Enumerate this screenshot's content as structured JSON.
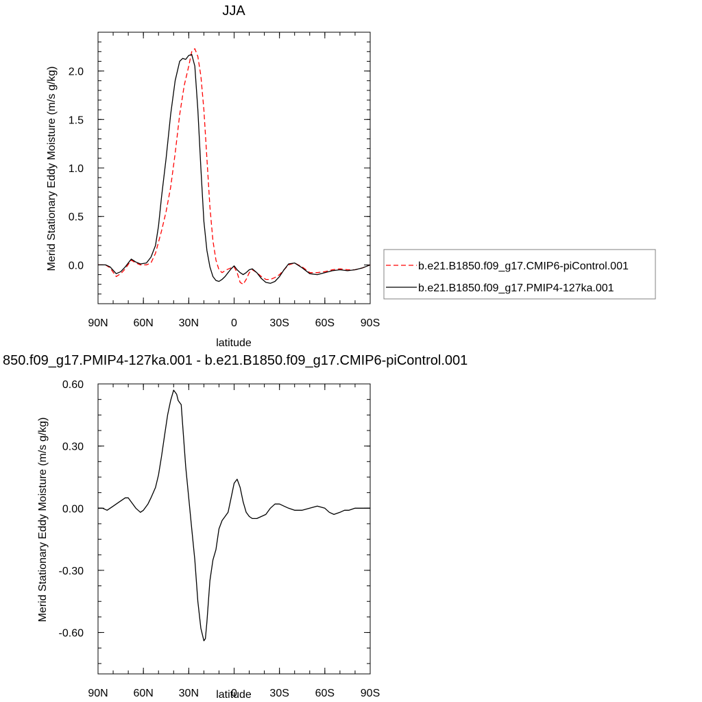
{
  "chart_data": [
    {
      "type": "line",
      "title": "JJA",
      "xlabel": "latitude",
      "ylabel": "Merid Stationary Eddy Moisture (m/s g/kg)",
      "xlim": [
        90,
        -90
      ],
      "ylim": [
        -0.4,
        2.4
      ],
      "xticks": [
        90,
        60,
        30,
        0,
        -30,
        -60,
        -90
      ],
      "xtick_labels": [
        "90N",
        "60N",
        "30N",
        "0",
        "30S",
        "60S",
        "90S"
      ],
      "yticks": [
        0.0,
        0.5,
        1.0,
        1.5,
        2.0
      ],
      "ytick_labels": [
        "0.0",
        "0.5",
        "1.0",
        "1.5",
        "2.0"
      ],
      "legend": "right",
      "series": [
        {
          "name": "b.e21.B1850.f09_g17.CMIP6-piControl.001",
          "color": "#ff0000",
          "dash": "dashed",
          "x": [
            90,
            85,
            82,
            78,
            75,
            72,
            68,
            65,
            62,
            58,
            55,
            52,
            48,
            45,
            42,
            39,
            36,
            33,
            30,
            28,
            26,
            24,
            22,
            20,
            18,
            16,
            14,
            12,
            10,
            8,
            5,
            2,
            0,
            -2,
            -4,
            -6,
            -8,
            -10,
            -12,
            -15,
            -18,
            -21,
            -24,
            -27,
            -30,
            -33,
            -36,
            -40,
            -45,
            -50,
            -55,
            -60,
            -65,
            -70,
            -75,
            -80,
            -85,
            -90
          ],
          "y": [
            0.0,
            0.0,
            -0.03,
            -0.12,
            -0.09,
            -0.04,
            0.05,
            0.02,
            0.0,
            0.0,
            0.02,
            0.12,
            0.35,
            0.55,
            0.8,
            1.15,
            1.55,
            1.85,
            2.05,
            2.2,
            2.23,
            2.15,
            1.95,
            1.6,
            1.1,
            0.6,
            0.25,
            0.05,
            -0.05,
            -0.08,
            -0.05,
            -0.03,
            -0.02,
            -0.08,
            -0.18,
            -0.2,
            -0.15,
            -0.08,
            -0.05,
            -0.08,
            -0.12,
            -0.15,
            -0.15,
            -0.13,
            -0.1,
            -0.05,
            0.0,
            0.02,
            -0.02,
            -0.08,
            -0.08,
            -0.07,
            -0.05,
            -0.04,
            -0.05,
            -0.05,
            -0.03,
            0.0
          ]
        },
        {
          "name": "b.e21.B1850.f09_g17.PMIP4-127ka.001",
          "color": "#000000",
          "dash": "solid",
          "x": [
            90,
            85,
            82,
            78,
            75,
            72,
            68,
            65,
            62,
            58,
            55,
            52,
            50,
            48,
            45,
            42,
            39,
            36,
            34,
            32,
            30,
            28,
            26,
            24,
            22,
            20,
            18,
            16,
            14,
            12,
            10,
            8,
            6,
            4,
            2,
            0,
            -2,
            -4,
            -6,
            -8,
            -10,
            -12,
            -15,
            -18,
            -21,
            -24,
            -27,
            -30,
            -33,
            -36,
            -40,
            -45,
            -50,
            -55,
            -60,
            -65,
            -70,
            -75,
            -80,
            -85,
            -90
          ],
          "y": [
            0.0,
            0.0,
            -0.02,
            -0.09,
            -0.07,
            -0.02,
            0.06,
            0.03,
            0.01,
            0.02,
            0.08,
            0.2,
            0.4,
            0.7,
            1.1,
            1.55,
            1.9,
            2.1,
            2.13,
            2.12,
            2.16,
            2.17,
            2.05,
            1.6,
            1.0,
            0.45,
            0.15,
            -0.02,
            -0.12,
            -0.16,
            -0.17,
            -0.15,
            -0.12,
            -0.08,
            -0.04,
            -0.01,
            -0.05,
            -0.08,
            -0.1,
            -0.08,
            -0.05,
            -0.04,
            -0.08,
            -0.14,
            -0.18,
            -0.19,
            -0.17,
            -0.12,
            -0.05,
            0.01,
            0.02,
            -0.03,
            -0.09,
            -0.1,
            -0.08,
            -0.06,
            -0.05,
            -0.06,
            -0.05,
            -0.03,
            0.0
          ]
        }
      ]
    },
    {
      "type": "line",
      "title": "850.f09_g17.PMIP4-127ka.001 - b.e21.B1850.f09_g17.CMIP6-piControl.001",
      "xlabel": "latitude",
      "ylabel": "Merid Stationary Eddy Moisture (m/s g/kg)",
      "xlim": [
        90,
        -90
      ],
      "ylim": [
        -0.8,
        0.6
      ],
      "xticks": [
        90,
        60,
        30,
        0,
        -30,
        -60,
        -90
      ],
      "xtick_labels": [
        "90N",
        "60N",
        "30N",
        "0",
        "30S",
        "60S",
        "90S"
      ],
      "yticks": [
        0.6,
        0.3,
        0.0,
        -0.3,
        -0.6
      ],
      "ytick_labels": [
        "0.60",
        "0.30",
        "0.00",
        "-0.30",
        "-0.60"
      ],
      "series": [
        {
          "color": "#000000",
          "dash": "solid",
          "x": [
            90,
            87,
            84,
            80,
            76,
            72,
            70,
            68,
            65,
            62,
            60,
            57,
            55,
            52,
            50,
            48,
            46,
            44,
            42,
            40,
            38,
            37,
            36,
            35,
            34,
            32,
            30,
            28,
            26,
            24,
            22,
            20,
            19,
            18,
            16,
            14,
            12,
            10,
            8,
            6,
            4,
            2,
            0,
            -2,
            -4,
            -6,
            -8,
            -10,
            -12,
            -15,
            -18,
            -21,
            -24,
            -27,
            -30,
            -33,
            -36,
            -40,
            -45,
            -50,
            -55,
            -60,
            -63,
            -66,
            -70,
            -73,
            -76,
            -80,
            -85,
            -90
          ],
          "y": [
            0.0,
            0.0,
            -0.01,
            0.01,
            0.03,
            0.05,
            0.05,
            0.03,
            0.0,
            -0.02,
            -0.01,
            0.02,
            0.05,
            0.1,
            0.16,
            0.25,
            0.35,
            0.45,
            0.52,
            0.57,
            0.55,
            0.52,
            0.51,
            0.5,
            0.4,
            0.2,
            0.05,
            -0.1,
            -0.25,
            -0.45,
            -0.58,
            -0.64,
            -0.63,
            -0.55,
            -0.35,
            -0.25,
            -0.2,
            -0.1,
            -0.06,
            -0.04,
            -0.02,
            0.05,
            0.12,
            0.14,
            0.1,
            0.03,
            -0.02,
            -0.04,
            -0.05,
            -0.05,
            -0.04,
            -0.03,
            0.0,
            0.02,
            0.02,
            0.01,
            0.0,
            -0.01,
            -0.01,
            0.0,
            0.01,
            0.0,
            -0.02,
            -0.03,
            -0.02,
            -0.01,
            -0.01,
            0.0,
            0.0,
            0.0
          ]
        }
      ]
    }
  ]
}
